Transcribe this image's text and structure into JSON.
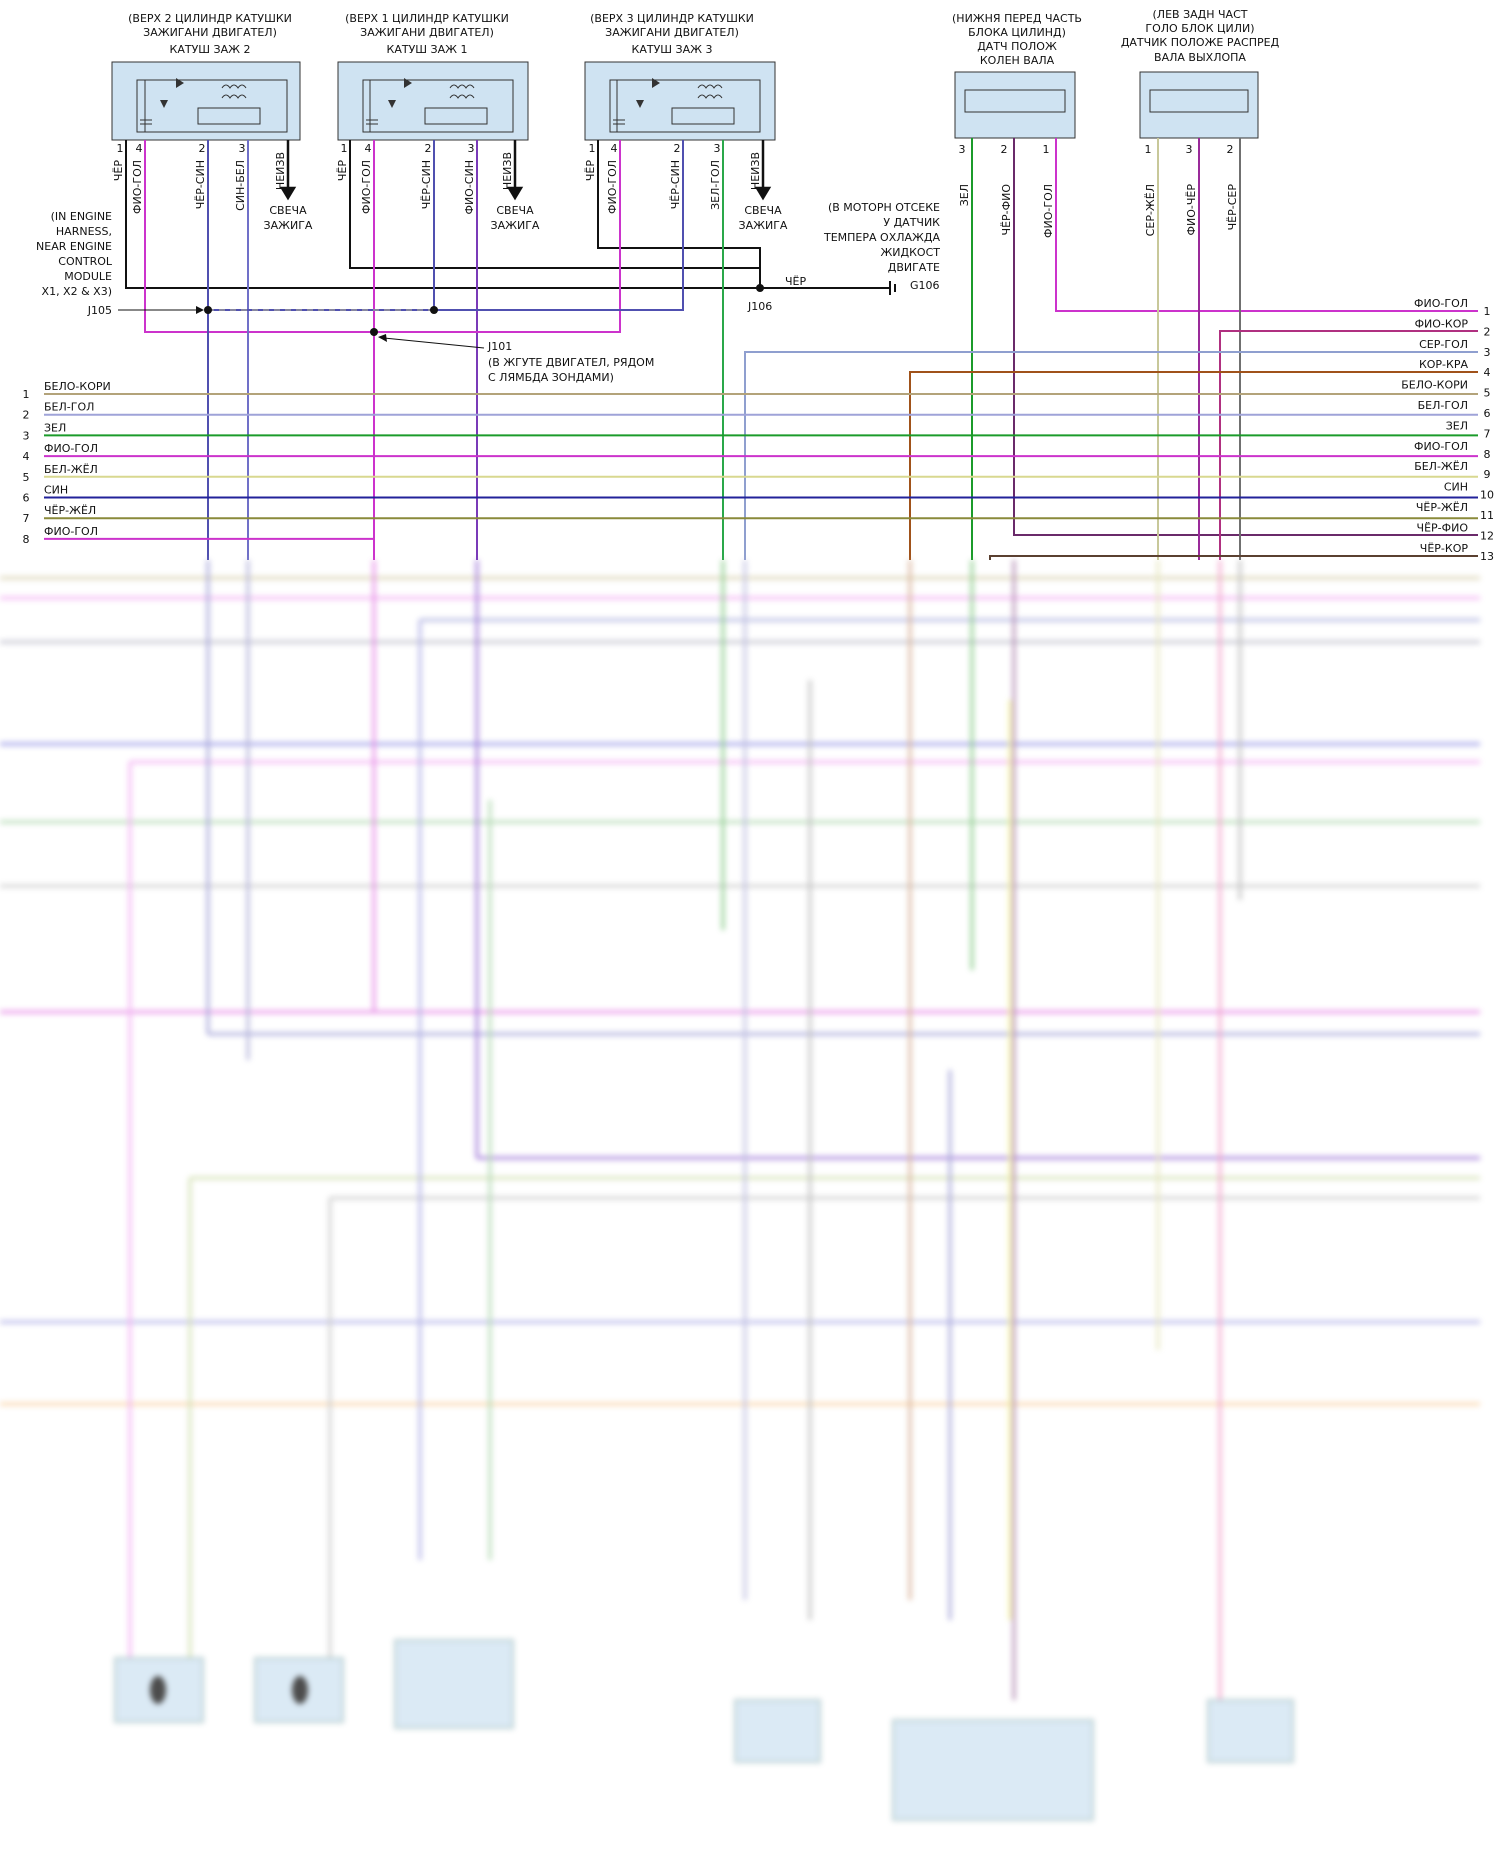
{
  "coils": [
    {
      "id": "coil2",
      "title": [
        "(ВЕРХ 2 ЦИЛИНДР КАТУШКИ",
        "ЗАЖИГАНИ ДВИГАТЕЛ)",
        "КАТУШ ЗАЖ 2"
      ],
      "pins": [
        {
          "n": "1",
          "wire": "ЧЁР"
        },
        {
          "n": "4",
          "wire": "ФИО-ГОЛ"
        },
        {
          "n": "2",
          "wire": "ЧЁР-СИН"
        },
        {
          "n": "3",
          "wire": "СИН-БЕЛ"
        }
      ],
      "out": "НЕИЗВ",
      "plug": [
        "СВЕЧА",
        "ЗАЖИГА"
      ]
    },
    {
      "id": "coil1",
      "title": [
        "(ВЕРХ 1 ЦИЛИНДР КАТУШКИ",
        "ЗАЖИГАНИ ДВИГАТЕЛ)",
        "КАТУШ ЗАЖ 1"
      ],
      "pins": [
        {
          "n": "1",
          "wire": "ЧЁР"
        },
        {
          "n": "4",
          "wire": "ФИО-ГОЛ"
        },
        {
          "n": "2",
          "wire": "ЧЁР-СИН"
        },
        {
          "n": "3",
          "wire": "ФИО-СИН"
        }
      ],
      "out": "НЕИЗВ",
      "plug": [
        "СВЕЧА",
        "ЗАЖИГА"
      ]
    },
    {
      "id": "coil3",
      "title": [
        "(ВЕРХ 3 ЦИЛИНДР КАТУШКИ",
        "ЗАЖИГАНИ ДВИГАТЕЛ)",
        "КАТУШ ЗАЖ 3"
      ],
      "pins": [
        {
          "n": "1",
          "wire": "ЧЁР"
        },
        {
          "n": "4",
          "wire": "ФИО-ГОЛ"
        },
        {
          "n": "2",
          "wire": "ЧЁР-СИН"
        },
        {
          "n": "3",
          "wire": "ЗЕЛ-ГОЛ"
        }
      ],
      "out": "НЕИЗВ",
      "plug": [
        "СВЕЧА",
        "ЗАЖИГА"
      ]
    }
  ],
  "sensors": [
    {
      "id": "ckp",
      "title": [
        "(НИЖНЯ ПЕРЕД ЧАСТЬ",
        "БЛОКА ЦИЛИНД)",
        "ДАТЧ ПОЛОЖ",
        "КОЛЕН ВАЛА"
      ],
      "pins": [
        {
          "n": "3",
          "wire": "ЗЕЛ"
        },
        {
          "n": "2",
          "wire": "ЧЁР-ФИО"
        },
        {
          "n": "1",
          "wire": "ФИО-ГОЛ"
        }
      ]
    },
    {
      "id": "cmp",
      "title": [
        "(ЛЕВ ЗАДН ЧАСТ",
        "ГОЛО БЛОК ЦИЛИ)",
        "ДАТЧИК ПОЛОЖЕ РАСПРЕД",
        "ВАЛА ВЫХЛОПА"
      ],
      "pins": [
        {
          "n": "1",
          "wire": "СЕР-ЖЁЛ"
        },
        {
          "n": "3",
          "wire": "ФИО-ЧЁР"
        },
        {
          "n": "2",
          "wire": "ЧЁР-СЕР"
        }
      ]
    }
  ],
  "j105_note": [
    "(IN ENGINE",
    "HARNESS,",
    "NEAR ENGINE",
    "CONTROL",
    "MODULE",
    "X1, X2 & X3)"
  ],
  "j105": "J105",
  "j101": "J101",
  "j101_note": [
    "(В ЖГУТЕ ДВИГАТЕЛ, РЯДОМ",
    "С ЛЯМБДА ЗОНДАМИ)"
  ],
  "j106": "J106",
  "g106_note": [
    "(В МОТОРН ОТСЕКЕ",
    "У ДАТЧИК",
    "ТЕМПЕРА ОХЛАЖДА",
    "ЖИДКОСТ",
    "ДВИГАТЕ"
  ],
  "g106": "G106",
  "ground_wire": "ЧЁР",
  "left_connector": [
    {
      "n": "1",
      "wire": "БЕЛО-КОРИ",
      "color": "#b3a37a"
    },
    {
      "n": "2",
      "wire": "БЕЛ-ГОЛ",
      "color": "#9fa3d8"
    },
    {
      "n": "3",
      "wire": "ЗЕЛ",
      "color": "#1b9b2a"
    },
    {
      "n": "4",
      "wire": "ФИО-ГОЛ",
      "color": "#cc33cc"
    },
    {
      "n": "5",
      "wire": "БЕЛ-ЖЁЛ",
      "color": "#d8d890"
    },
    {
      "n": "6",
      "wire": "СИН",
      "color": "#22229a"
    },
    {
      "n": "7",
      "wire": "ЧЁР-ЖЁЛ",
      "color": "#8a8a3a"
    },
    {
      "n": "8",
      "wire": "ФИО-ГОЛ",
      "color": "#cc33cc"
    }
  ],
  "right_connector": [
    {
      "n": "1",
      "wire": "ФИО-ГОЛ",
      "color": "#cc33cc"
    },
    {
      "n": "2",
      "wire": "ФИО-КОР",
      "color": "#b03080"
    },
    {
      "n": "3",
      "wire": "СЕР-ГОЛ",
      "color": "#8f9fcf"
    },
    {
      "n": "4",
      "wire": "КОР-КРА",
      "color": "#a0521a"
    },
    {
      "n": "5",
      "wire": "БЕЛО-КОРИ",
      "color": "#b3a37a"
    },
    {
      "n": "6",
      "wire": "БЕЛ-ГОЛ",
      "color": "#9fa3d8"
    },
    {
      "n": "7",
      "wire": "ЗЕЛ",
      "color": "#1b9b2a"
    },
    {
      "n": "8",
      "wire": "ФИО-ГОЛ",
      "color": "#cc33cc"
    },
    {
      "n": "9",
      "wire": "БЕЛ-ЖЁЛ",
      "color": "#d8d890"
    },
    {
      "n": "10",
      "wire": "СИН",
      "color": "#22229a"
    },
    {
      "n": "11",
      "wire": "ЧЁР-ЖЁЛ",
      "color": "#8a8a3a"
    },
    {
      "n": "12",
      "wire": "ЧЁР-ФИО",
      "color": "#6a2a6a"
    },
    {
      "n": "13",
      "wire": "ЧЁР-КОР",
      "color": "#5a4030"
    }
  ],
  "colors": {
    "black": "#111111",
    "fio_gol": "#cc33cc",
    "chyor_sin": "#5050b0",
    "sin_bel": "#7070c8",
    "fio_sin": "#7a3ab8",
    "zel_gol": "#2aa84a",
    "zel": "#1b9b2a",
    "chyor_fio": "#6a2a6a",
    "ser_zhyol": "#c8c89a",
    "fio_chyor": "#9a2a9a",
    "chyor_ser": "#707070",
    "box": "#cfe3f2"
  }
}
